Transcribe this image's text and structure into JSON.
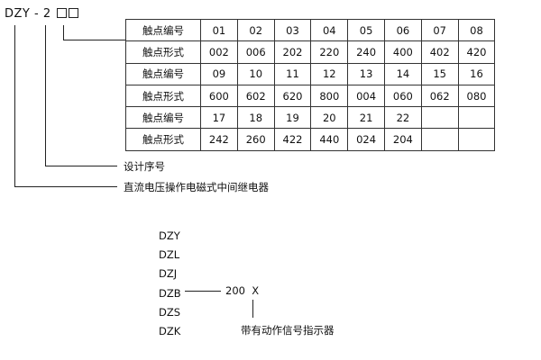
{
  "model": {
    "prefix": "DZY - 2",
    "placeholder_boxes": 2
  },
  "table": {
    "rows": [
      {
        "label": "触点编号",
        "cells": [
          "01",
          "02",
          "03",
          "04",
          "05",
          "06",
          "07",
          "08"
        ]
      },
      {
        "label": "触点形式",
        "cells": [
          "002",
          "006",
          "202",
          "220",
          "240",
          "400",
          "402",
          "420"
        ]
      },
      {
        "label": "触点编号",
        "cells": [
          "09",
          "10",
          "11",
          "12",
          "13",
          "14",
          "15",
          "16"
        ]
      },
      {
        "label": "触点形式",
        "cells": [
          "600",
          "602",
          "620",
          "800",
          "004",
          "060",
          "062",
          "080"
        ]
      },
      {
        "label": "触点编号",
        "cells": [
          "17",
          "18",
          "19",
          "20",
          "21",
          "22",
          "",
          ""
        ]
      },
      {
        "label": "触点形式",
        "cells": [
          "242",
          "260",
          "422",
          "440",
          "024",
          "204",
          "",
          ""
        ]
      }
    ]
  },
  "labels": {
    "design_number": "设计序号",
    "relay_type": "直流电压操作电磁式中间继电器"
  },
  "variants": [
    "DZY",
    "DZL",
    "DZJ",
    "DZB",
    "DZS",
    "DZK"
  ],
  "suffix": {
    "code": "200  X",
    "description": "带有动作信号指示器"
  }
}
